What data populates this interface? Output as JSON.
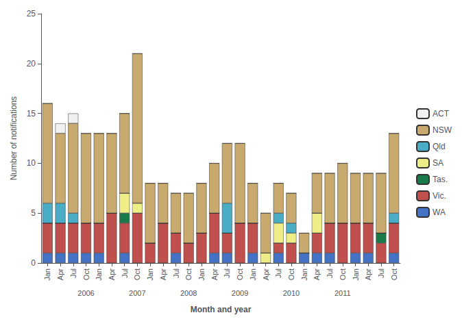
{
  "chart_data": {
    "type": "bar",
    "stacked": true,
    "categories": [
      "Jan",
      "Apr",
      "Jul",
      "Oct",
      "Jan",
      "Apr",
      "Jul",
      "Oct",
      "Jan",
      "Apr",
      "Jul",
      "Oct",
      "Jan",
      "Apr",
      "Jul",
      "Oct",
      "Jan",
      "Apr",
      "Jul",
      "Oct",
      "Jan",
      "Apr",
      "Jul",
      "Oct",
      "Jan",
      "Apr",
      "Jul",
      "Oct"
    ],
    "series": [
      {
        "name": "WA",
        "color": "#4472c4",
        "values": [
          1,
          1,
          1,
          1,
          1,
          0,
          1,
          0,
          0,
          0,
          1,
          0,
          0,
          1,
          1,
          0,
          1,
          0,
          1,
          0,
          1,
          1,
          1,
          0,
          1,
          1,
          0,
          1
        ]
      },
      {
        "name": "Vic.",
        "color": "#c0504d",
        "values": [
          3,
          3,
          3,
          3,
          3,
          5,
          3,
          5,
          2,
          4,
          2,
          2,
          3,
          4,
          2,
          4,
          3,
          0,
          1,
          2,
          0,
          2,
          3,
          4,
          3,
          3,
          2,
          3
        ]
      },
      {
        "name": "Tas.",
        "color": "#1a7a4a",
        "values": [
          0,
          0,
          0,
          0,
          0,
          0,
          1,
          0,
          0,
          0,
          0,
          0,
          0,
          0,
          0,
          0,
          0,
          0,
          0,
          0,
          0,
          0,
          0,
          0,
          0,
          0,
          1,
          0
        ]
      },
      {
        "name": "SA",
        "color": "#eeee88",
        "values": [
          0,
          0,
          0,
          0,
          0,
          0,
          2,
          1,
          0,
          0,
          0,
          0,
          0,
          0,
          0,
          0,
          0,
          1,
          2,
          1,
          0,
          2,
          0,
          0,
          0,
          0,
          0,
          0
        ]
      },
      {
        "name": "Qld",
        "color": "#4bacc6",
        "values": [
          2,
          2,
          1,
          0,
          0,
          0,
          0,
          0,
          0,
          0,
          0,
          0,
          0,
          0,
          3,
          0,
          0,
          0,
          1,
          1,
          0,
          0,
          0,
          0,
          0,
          0,
          0,
          1
        ]
      },
      {
        "name": "NSW",
        "color": "#c8a96e",
        "values": [
          10,
          7,
          9,
          9,
          9,
          8,
          8,
          15,
          6,
          4,
          4,
          5,
          5,
          5,
          6,
          8,
          4,
          4,
          3,
          3,
          2,
          4,
          5,
          6,
          5,
          5,
          6,
          8
        ]
      },
      {
        "name": "ACT",
        "color": "#f0f0f0",
        "values": [
          0,
          1,
          1,
          0,
          0,
          0,
          0,
          0,
          0,
          0,
          0,
          0,
          0,
          0,
          0,
          0,
          0,
          0,
          0,
          0,
          0,
          0,
          0,
          0,
          0,
          0,
          0,
          0
        ]
      }
    ],
    "annotations": [
      {
        "text": "2006",
        "x": 3
      },
      {
        "text": "2007",
        "x": 7
      },
      {
        "text": "2008",
        "x": 11
      },
      {
        "text": "2009",
        "x": 15
      },
      {
        "text": "2010",
        "x": 19
      },
      {
        "text": "2011",
        "x": 23
      }
    ],
    "xlabel": "Month and year",
    "ylabel": "Number of notifications",
    "ylim": [
      0,
      25
    ],
    "yticks": [
      0,
      5,
      10,
      15,
      20,
      25
    ],
    "grid": false,
    "legend": "right"
  }
}
